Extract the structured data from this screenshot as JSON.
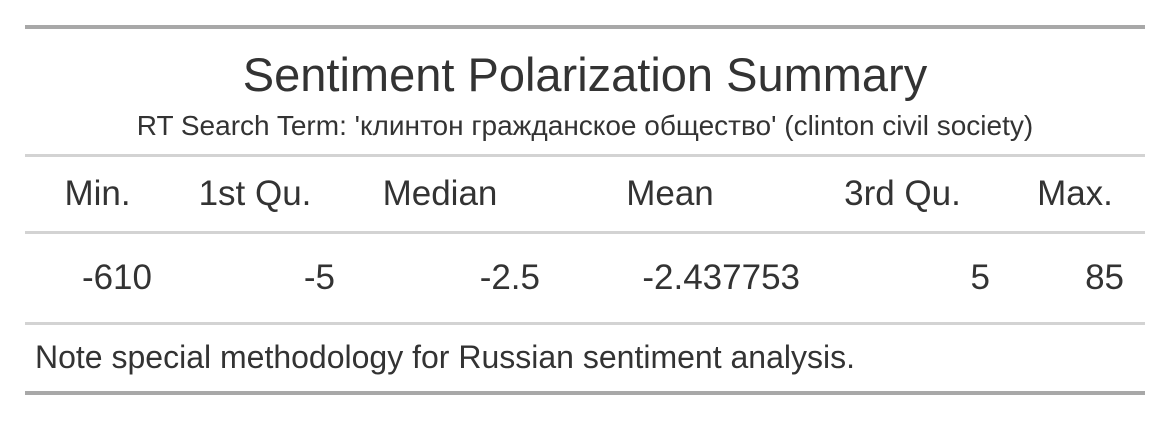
{
  "table": {
    "title": "Sentiment Polarization Summary",
    "subtitle": "RT Search Term: 'клинтон гражданское общество' (clinton civil society)",
    "columns": [
      "Min.",
      "1st Qu.",
      "Median",
      "Mean",
      "3rd Qu.",
      "Max."
    ],
    "rows": [
      [
        "-610",
        "-5",
        "-2.5",
        "-2.437753",
        "5",
        "85"
      ]
    ],
    "note": "Note special methodology for Russian sentiment analysis."
  }
}
